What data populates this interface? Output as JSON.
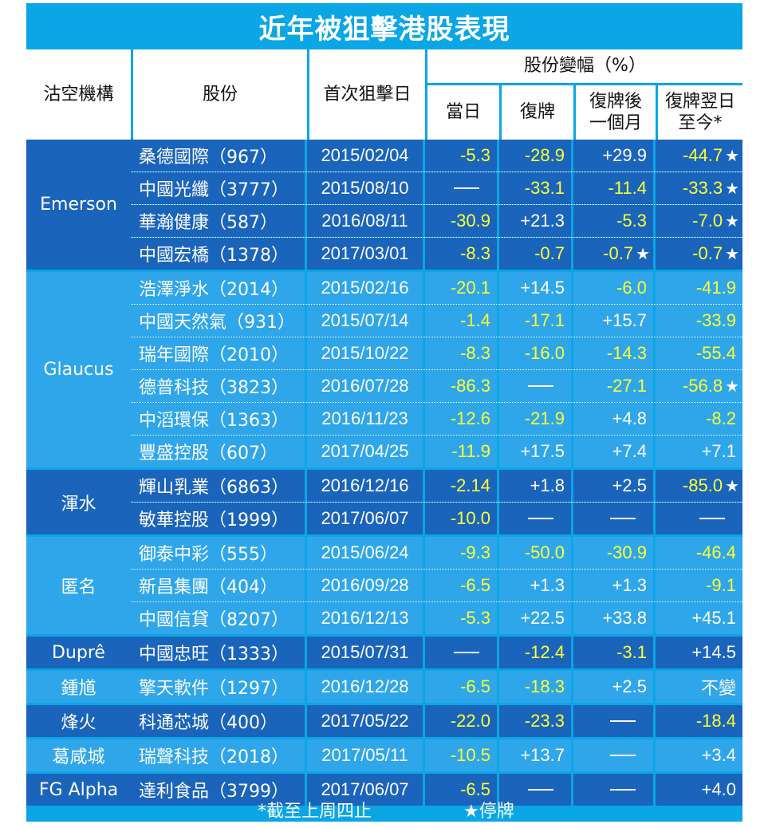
{
  "title": "近年被狙擊港股表現",
  "headers": {
    "org": "沽空機構",
    "stock": "股份",
    "first_date": "首次狙擊日",
    "change_group": "股份變幅（%）",
    "same_day": "當日",
    "resume": "復牌",
    "month_line1": "復牌後",
    "month_line2": "一個月",
    "today_line1": "復牌翌日",
    "today_line2": "至今*"
  },
  "colors": {
    "panel": "#0aa6e6",
    "dark_row": "#1a64bb",
    "light_row": "#2fa6ea",
    "negative": "#ffff33"
  },
  "groups": [
    {
      "org": "Emerson",
      "shade": "dark",
      "rows": [
        {
          "stock": "桑德國際（967）",
          "date": "2015/02/04",
          "values": [
            "-5.3",
            "-28.9",
            "+29.9",
            "-44.7"
          ],
          "stars": [
            false,
            false,
            false,
            true
          ]
        },
        {
          "stock": "中國光纖（3777）",
          "date": "2015/08/10",
          "values": [
            "—",
            "-33.1",
            "-11.4",
            "-33.3"
          ],
          "stars": [
            false,
            false,
            false,
            true
          ]
        },
        {
          "stock": "華瀚健康（587）",
          "date": "2016/08/11",
          "values": [
            "-30.9",
            "+21.3",
            "-5.3",
            "-7.0"
          ],
          "stars": [
            false,
            false,
            false,
            true
          ]
        },
        {
          "stock": "中國宏橋（1378）",
          "date": "2017/03/01",
          "values": [
            "-8.3",
            "-0.7",
            "-0.7",
            "-0.7"
          ],
          "stars": [
            false,
            false,
            true,
            true
          ]
        }
      ]
    },
    {
      "org": "Glaucus",
      "shade": "light",
      "rows": [
        {
          "stock": "浩澤淨水（2014）",
          "date": "2015/02/16",
          "values": [
            "-20.1",
            "+14.5",
            "-6.0",
            "-41.9"
          ],
          "stars": [
            false,
            false,
            false,
            false
          ]
        },
        {
          "stock": "中國天然氣（931）",
          "date": "2015/07/14",
          "values": [
            "-1.4",
            "-17.1",
            "+15.7",
            "-33.9"
          ],
          "stars": [
            false,
            false,
            false,
            false
          ]
        },
        {
          "stock": "瑞年國際（2010）",
          "date": "2015/10/22",
          "values": [
            "-8.3",
            "-16.0",
            "-14.3",
            "-55.4"
          ],
          "stars": [
            false,
            false,
            false,
            false
          ]
        },
        {
          "stock": "德普科技（3823）",
          "date": "2016/07/28",
          "values": [
            "-86.3",
            "—",
            "-27.1",
            "-56.8"
          ],
          "stars": [
            false,
            false,
            false,
            true
          ]
        },
        {
          "stock": "中滔環保（1363）",
          "date": "2016/11/23",
          "values": [
            "-12.6",
            "-21.9",
            "+4.8",
            "-8.2"
          ],
          "stars": [
            false,
            false,
            false,
            false
          ]
        },
        {
          "stock": "豐盛控股（607）",
          "date": "2017/04/25",
          "values": [
            "-11.9",
            "+17.5",
            "+7.4",
            "+7.1"
          ],
          "stars": [
            false,
            false,
            false,
            false
          ]
        }
      ]
    },
    {
      "org": "渾水",
      "shade": "dark",
      "rows": [
        {
          "stock": "輝山乳業（6863）",
          "date": "2016/12/16",
          "values": [
            "-2.14",
            "+1.8",
            "+2.5",
            "-85.0"
          ],
          "stars": [
            false,
            false,
            false,
            true
          ]
        },
        {
          "stock": "敏華控股（1999）",
          "date": "2017/06/07",
          "values": [
            "-10.0",
            "—",
            "—",
            "—"
          ],
          "stars": [
            false,
            false,
            false,
            false
          ]
        }
      ]
    },
    {
      "org": "匿名",
      "shade": "light",
      "rows": [
        {
          "stock": "御泰中彩（555）",
          "date": "2015/06/24",
          "values": [
            "-9.3",
            "-50.0",
            "-30.9",
            "-46.4"
          ],
          "stars": [
            false,
            false,
            false,
            false
          ]
        },
        {
          "stock": "新昌集團（404）",
          "date": "2016/09/28",
          "values": [
            "-6.5",
            "+1.3",
            "+1.3",
            "-9.1"
          ],
          "stars": [
            false,
            false,
            false,
            false
          ]
        },
        {
          "stock": "中國信貸（8207）",
          "date": "2016/12/13",
          "values": [
            "-5.3",
            "+22.5",
            "+33.8",
            "+45.1"
          ],
          "stars": [
            false,
            false,
            false,
            false
          ]
        }
      ]
    },
    {
      "org": "Duprê",
      "shade": "dark",
      "rows": [
        {
          "stock": "中國忠旺（1333）",
          "date": "2015/07/31",
          "values": [
            "—",
            "-12.4",
            "-3.1",
            "+14.5"
          ],
          "stars": [
            false,
            false,
            false,
            false
          ]
        }
      ]
    },
    {
      "org": "鍾馗",
      "shade": "light",
      "rows": [
        {
          "stock": "擎天軟件（1297）",
          "date": "2016/12/28",
          "values": [
            "-6.5",
            "-18.3",
            "+2.5",
            "不變"
          ],
          "stars": [
            false,
            false,
            false,
            false
          ]
        }
      ]
    },
    {
      "org": "烽火",
      "shade": "dark",
      "rows": [
        {
          "stock": "科通芯城（400）",
          "date": "2017/05/22",
          "values": [
            "-22.0",
            "-23.3",
            "—",
            "-18.4"
          ],
          "stars": [
            false,
            false,
            false,
            false
          ]
        }
      ]
    },
    {
      "org": "葛咸城",
      "shade": "light",
      "rows": [
        {
          "stock": "瑞聲科技（2018）",
          "date": "2017/05/11",
          "values": [
            "-10.5",
            "+13.7",
            "—",
            "+3.4"
          ],
          "stars": [
            false,
            false,
            false,
            false
          ]
        }
      ]
    },
    {
      "org": "FG Alpha",
      "shade": "dark",
      "rows": [
        {
          "stock": "達利食品（3799）",
          "date": "2017/06/07",
          "values": [
            "-6.5",
            "—",
            "—",
            "+4.0"
          ],
          "stars": [
            false,
            false,
            false,
            false
          ]
        }
      ]
    }
  ],
  "footer": {
    "note_asterisk": "*截至上周四止",
    "note_star": "★停牌",
    "star_glyph": "★"
  }
}
